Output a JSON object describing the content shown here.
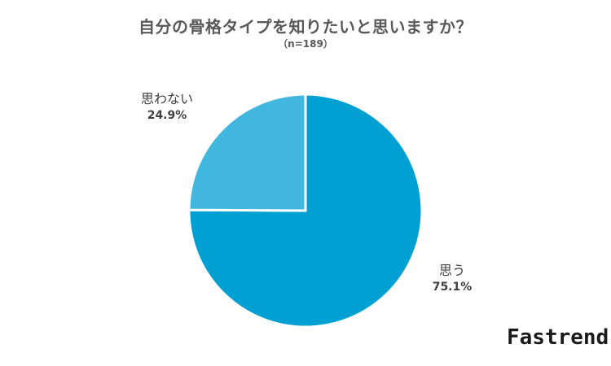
{
  "chart_data": {
    "type": "pie",
    "title": "自分の骨格タイプを知りたいと思いますか？",
    "subtitle": "（n=189）",
    "slices": [
      {
        "label": "思う",
        "value": 75.1,
        "value_label": "75.1%",
        "color": "#00a0d2"
      },
      {
        "label": "思わない",
        "value": 24.9,
        "value_label": "24.9%",
        "color": "#41b6df"
      }
    ],
    "start_angle_deg": 0,
    "direction": "clockwise",
    "slice_border_color": "#ffffff"
  },
  "brand": {
    "logo_text": "Fastrend"
  }
}
